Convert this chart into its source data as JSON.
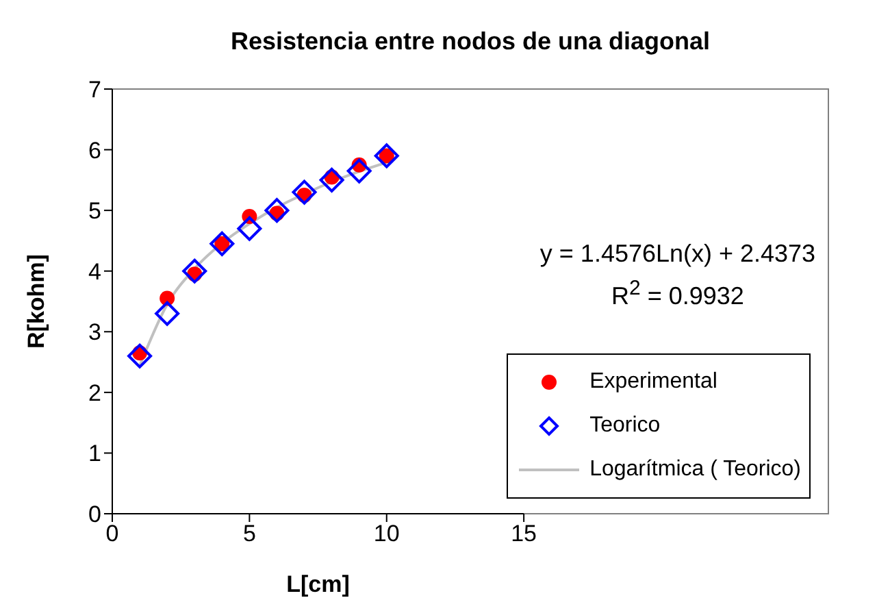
{
  "chart_data": {
    "type": "scatter",
    "title": "Resistencia entre nodos de una diagonal",
    "xlabel": "L[cm]",
    "ylabel": "R[kohm]",
    "xlim": [
      0,
      15
    ],
    "xticks": [
      0,
      5,
      10,
      15
    ],
    "ylim": [
      0,
      7
    ],
    "yticks": [
      0,
      1,
      2,
      3,
      4,
      5,
      6,
      7
    ],
    "grid": false,
    "legend": "bottom right",
    "annotations": [
      "y = 1.4576Ln(x) + 2.4373",
      "R$^{2}$ = 0.9932"
    ],
    "series": [
      {
        "name": "Experimental",
        "marker": "circle",
        "color": "#ff0000",
        "x": [
          1,
          2,
          3,
          4,
          5,
          6,
          7,
          8,
          9,
          10
        ],
        "values": [
          2.65,
          3.55,
          3.95,
          4.45,
          4.9,
          4.95,
          5.25,
          5.55,
          5.75,
          5.9
        ]
      },
      {
        "name": "Teorico",
        "marker": "diamond",
        "color": "#0000ff",
        "x": [
          1,
          2,
          3,
          4,
          5,
          6,
          7,
          8,
          9,
          10
        ],
        "values": [
          2.6,
          3.3,
          4.0,
          4.45,
          4.7,
          5.0,
          5.3,
          5.5,
          5.65,
          5.9
        ]
      },
      {
        "name": "Logarítmica ( Teorico)",
        "type": "line",
        "marker": "none",
        "line_style": "solid",
        "color": "#c0c0c0",
        "x": [
          1,
          2,
          3,
          4,
          5,
          6,
          7,
          8,
          9,
          10
        ],
        "values": [
          2.44,
          3.45,
          4.04,
          4.46,
          4.78,
          5.05,
          5.27,
          5.47,
          5.64,
          5.79
        ]
      }
    ]
  }
}
